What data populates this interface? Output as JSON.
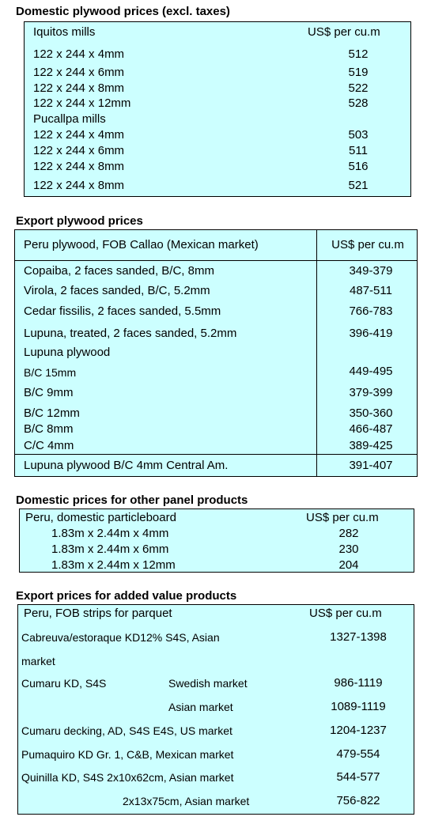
{
  "sec1": {
    "title": "Domestic plywood prices (excl. taxes)",
    "iquitos_label": "Iquitos mills",
    "unit": "US$ per cu.m",
    "iquitos_rows": [
      {
        "size": "122 x 244 x 4mm",
        "price": "512"
      },
      {
        "size": "122 x 244 x 6mm",
        "price": "519"
      },
      {
        "size": "122 x 244 x 8mm",
        "price": "522"
      },
      {
        "size": "122 x 244 x 12mm",
        "price": "528"
      }
    ],
    "pucallpa_label": "Pucallpa mills",
    "pucallpa_rows": [
      {
        "size": "122 x 244 x 4mm",
        "price": "503"
      },
      {
        "size": "122 x 244 x 6mm",
        "price": "511"
      },
      {
        "size": "122 x 244 x 8mm",
        "price": "516"
      },
      {
        "size": "122 x 244 x 8mm",
        "price": "521"
      }
    ]
  },
  "sec2": {
    "title": "Export plywood prices",
    "header_label": "Peru plywood, FOB Callao (Mexican market)",
    "unit": "US$ per cu.m",
    "rows": [
      {
        "product": "Copaiba, 2 faces sanded, B/C, 8mm",
        "price": "349-379"
      },
      {
        "product": "Virola, 2 faces sanded, B/C, 5.2mm",
        "price": "487-511"
      },
      {
        "product": "Cedar fissilis, 2 faces sanded, 5.5mm",
        "price": "766-783"
      },
      {
        "product": "Lupuna, treated, 2 faces sanded, 5.2mm",
        "price": "396-419"
      }
    ],
    "lupuna_label": "Lupuna plywood",
    "lupuna_rows": [
      {
        "product": "B/C 15mm",
        "price": "449-495"
      },
      {
        "product": "B/C 9mm",
        "price": "379-399"
      },
      {
        "product": "B/C 12mm",
        "price": "350-360"
      },
      {
        "product": "B/C 8mm",
        "price": "466-487"
      },
      {
        "product": "C/C 4mm",
        "price": "389-425"
      }
    ],
    "last_row": {
      "product": "Lupuna plywood B/C 4mm Central Am.",
      "price": "391-407"
    }
  },
  "sec3": {
    "title": "Domestic prices for other panel products",
    "header_label": "Peru, domestic particleboard",
    "unit": "US$ per cu.m",
    "rows": [
      {
        "size": "1.83m x 2.44m x 4mm",
        "price": "282"
      },
      {
        "size": "1.83m x 2.44m x 6mm",
        "price": "230"
      },
      {
        "size": "1.83m x 2.44m x 12mm",
        "price": "204"
      }
    ]
  },
  "sec4": {
    "title": "Export prices for added value products",
    "header_label": "Peru, FOB strips for parquet",
    "unit": "US$ per cu.m",
    "r1_product": "Cabreuva/estoraque KD12% S4S, Asian",
    "r1_product_cont": "market",
    "r1_price": "1327-1398",
    "r2_product": "Cumaru KD, S4S",
    "r2_market": "Swedish market",
    "r2_price": "986-1119",
    "r3_market": "Asian market",
    "r3_price": "1089-1119",
    "r4_product": "Cumaru decking, AD, S4S E4S,  US market",
    "r4_price": "1204-1237",
    "r5_product": "Pumaquiro KD Gr. 1, C&B,  Mexican market",
    "r5_price": "479-554",
    "r6_product": "Quinilla KD, S4S 2x10x62cm,  Asian market",
    "r6_price": "544-577",
    "r7_product": "2x13x75cm, Asian market",
    "r7_price": "756-822"
  }
}
